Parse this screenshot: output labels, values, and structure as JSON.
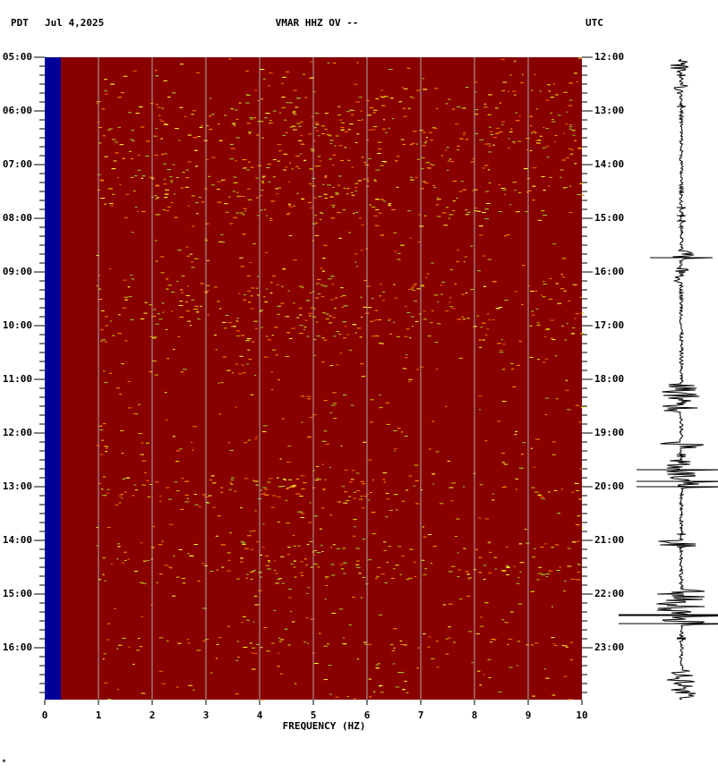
{
  "chart_data": {
    "type": "spectrogram",
    "left_label": "PDT",
    "date": "Jul 4,2025",
    "title": "VMAR HHZ OV --",
    "right_label": "UTC",
    "xlabel": "FREQUENCY (HZ)",
    "xlim": [
      0,
      10
    ],
    "xticks": [
      0,
      1,
      2,
      3,
      4,
      5,
      6,
      7,
      8,
      9,
      10
    ],
    "y_left_labels": [
      "05:00",
      "06:00",
      "07:00",
      "08:00",
      "09:00",
      "10:00",
      "11:00",
      "12:00",
      "13:00",
      "14:00",
      "15:00",
      "16:00"
    ],
    "y_right_labels": [
      "12:00",
      "13:00",
      "14:00",
      "15:00",
      "16:00",
      "17:00",
      "18:00",
      "19:00",
      "20:00",
      "21:00",
      "22:00",
      "23:00"
    ],
    "grid": true,
    "background_color": "#880000",
    "low_band_color": "#000099",
    "footnote": "*"
  }
}
